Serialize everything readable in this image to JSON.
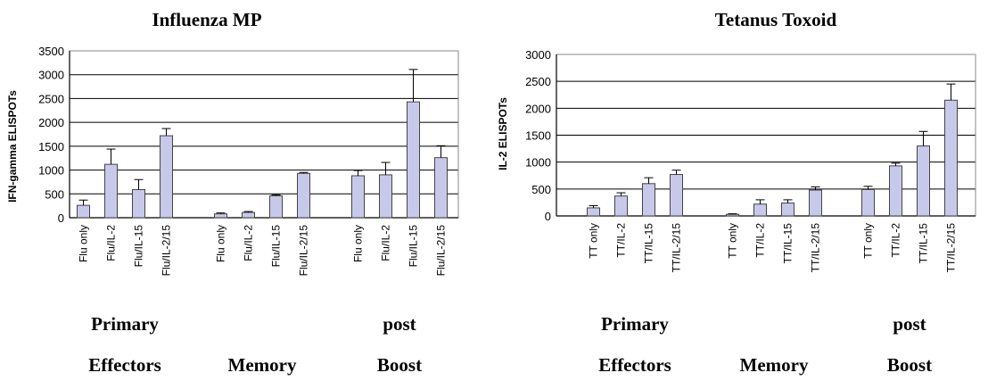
{
  "chart_data": [
    {
      "type": "bar",
      "title": "Influenza MP",
      "ylabel": "IFN-gamma ELISPOTs",
      "xlabel": "",
      "ylim": [
        0,
        3500
      ],
      "yticks": [
        0,
        500,
        1000,
        1500,
        2000,
        2500,
        3000,
        3500
      ],
      "grid": true,
      "groups": [
        {
          "name": "Primary Effectors",
          "lines": [
            "Primary",
            "Effectors"
          ],
          "categories": [
            "Flu only",
            "Flu/IL-2",
            "Flu/IL-15",
            "Flu/IL-2/15"
          ],
          "values": [
            260,
            1120,
            590,
            1720
          ],
          "errors": [
            110,
            320,
            210,
            150
          ]
        },
        {
          "name": "Memory",
          "lines": [
            "",
            "Memory"
          ],
          "categories": [
            "Flu only",
            "Flu/IL-2",
            "Flu/IL-15",
            "Flu/IL-2/15"
          ],
          "values": [
            80,
            110,
            460,
            930
          ],
          "errors": [
            20,
            20,
            20,
            20
          ]
        },
        {
          "name": "post Boost",
          "lines": [
            "post",
            "Boost"
          ],
          "categories": [
            "Flu only",
            "Flu/IL-2",
            "Flu/IL-15",
            "Flu/IL-2/15"
          ],
          "values": [
            880,
            900,
            2430,
            1260
          ],
          "errors": [
            110,
            260,
            680,
            250
          ]
        }
      ]
    },
    {
      "type": "bar",
      "title": "Tetanus Toxoid",
      "ylabel": "IL-2 ELISPOTs",
      "xlabel": "",
      "ylim": [
        0,
        3000
      ],
      "yticks": [
        0,
        500,
        1000,
        1500,
        2000,
        2500,
        3000
      ],
      "grid": true,
      "groups": [
        {
          "name": "Primary Effectors",
          "lines": [
            "Primary",
            "Effectors"
          ],
          "categories": [
            "TT only",
            "TT/IL-2",
            "TT/IL-15",
            "TT/IL-2/15"
          ],
          "values": [
            150,
            370,
            600,
            770
          ],
          "errors": [
            40,
            60,
            110,
            80
          ]
        },
        {
          "name": "Memory",
          "lines": [
            "",
            "Memory"
          ],
          "categories": [
            "TT only",
            "TT/IL-2",
            "TT/IL-15",
            "TT/IL-2/15"
          ],
          "values": [
            30,
            220,
            240,
            480
          ],
          "errors": [
            10,
            80,
            60,
            60
          ]
        },
        {
          "name": "post Boost",
          "lines": [
            "post",
            "Boost"
          ],
          "categories": [
            "TT only",
            "TT/IL-2",
            "TT/IL-15",
            "TT/IL-2/15"
          ],
          "values": [
            490,
            930,
            1300,
            2150
          ],
          "errors": [
            60,
            50,
            270,
            300
          ]
        }
      ]
    }
  ],
  "colors": {
    "bar_fill": "#c8c9ea",
    "bar_stroke": "#444444",
    "grid": "#000000",
    "axis": "#000000"
  }
}
